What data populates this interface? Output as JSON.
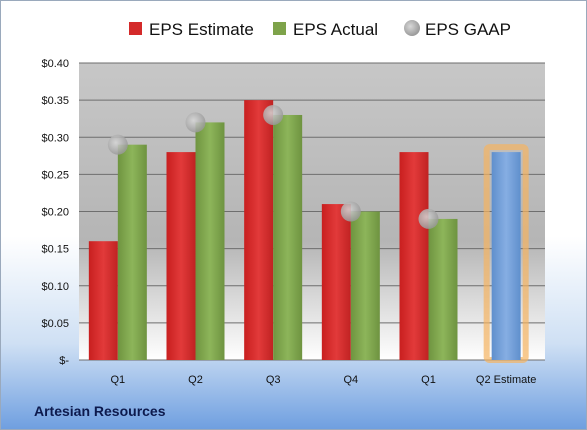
{
  "company": "Artesian Resources",
  "chart_data": {
    "type": "bar",
    "categories": [
      "Q1",
      "Q2",
      "Q3",
      "Q4",
      "Q1",
      "Q2 Estimate"
    ],
    "y_tick_labels": [
      "$-",
      "$0.05",
      "$0.10",
      "$0.15",
      "$0.20",
      "$0.25",
      "$0.30",
      "$0.35",
      "$0.40"
    ],
    "ylim": [
      0,
      0.4
    ],
    "grid": true,
    "legend_position": "top",
    "series": [
      {
        "name": "EPS Estimate",
        "type": "bar",
        "color": "#d42a2a",
        "values": [
          0.16,
          0.28,
          0.35,
          0.21,
          0.28,
          null
        ]
      },
      {
        "name": "EPS Actual",
        "type": "bar",
        "color": "#7ea34a",
        "values": [
          0.29,
          0.32,
          0.33,
          0.2,
          0.19,
          null
        ]
      },
      {
        "name": "EPS GAAP",
        "type": "scatter",
        "color": "#a8a8a8",
        "values": [
          0.29,
          0.32,
          0.33,
          0.2,
          0.19,
          null
        ]
      },
      {
        "name": "",
        "type": "bar",
        "color": "#6f9fd8",
        "highlight": "#f5b461",
        "values": [
          null,
          null,
          null,
          null,
          null,
          0.28
        ]
      }
    ]
  }
}
